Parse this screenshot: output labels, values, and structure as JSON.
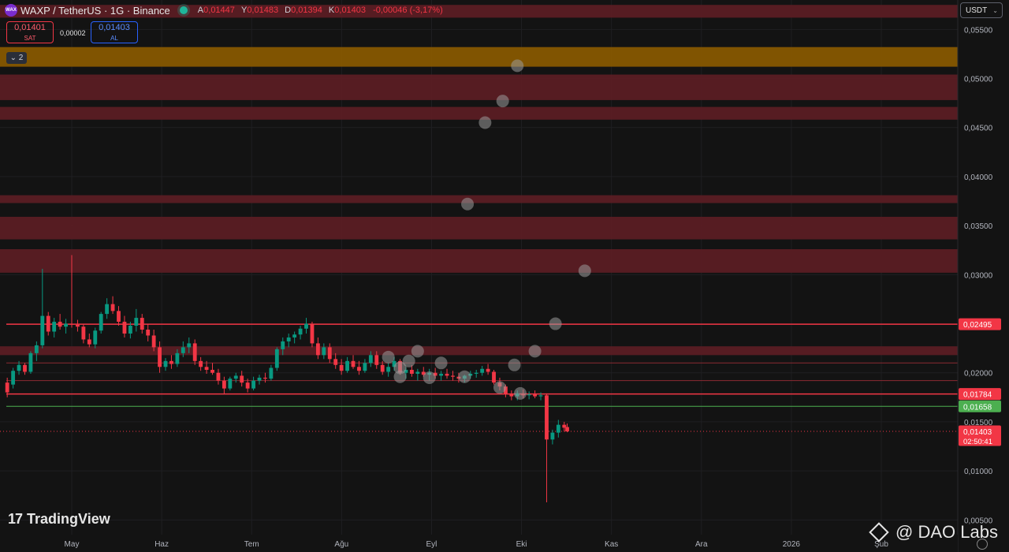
{
  "header": {
    "symbol": "WAXP / TetherUS · 1G · Binance",
    "ohlc": [
      {
        "key": "A",
        "value": "0,01447"
      },
      {
        "key": "Y",
        "value": "0,01483"
      },
      {
        "key": "D",
        "value": "0,01394"
      },
      {
        "key": "K",
        "value": "0,01403"
      }
    ],
    "change": "-0,00046 (-3,17%)"
  },
  "trade_panel": {
    "sell_price": "0,01401",
    "sell_label": "SAT",
    "spread": "0,00002",
    "buy_price": "0,01403",
    "buy_label": "AL"
  },
  "indicator_toggle": "2",
  "currency_button": "USDT",
  "tv_brand": "TradingView",
  "watermark": "@ DAO Labs",
  "chart_data": {
    "type": "candlestick",
    "pair": "WAXP/USDT",
    "timeframe": "1G",
    "exchange": "Binance",
    "y_ticks": [
      "0,05500",
      "0,05000",
      "0,04500",
      "0,04000",
      "0,03500",
      "0,03000",
      "0,02000",
      "0,01500",
      "0,01000",
      "0,00500"
    ],
    "ylim": [
      0.0035,
      0.058
    ],
    "x_ticks": [
      "May",
      "Haz",
      "Tem",
      "Ağu",
      "Eyl",
      "Eki",
      "Kas",
      "Ara",
      "2026",
      "Şub"
    ],
    "current_price": "0,01403",
    "countdown": "02:50:41",
    "price_labels": [
      {
        "value": "0,02495",
        "color": "#f23645"
      },
      {
        "value": "0,01784",
        "color": "#f23645"
      },
      {
        "value": "0,01658",
        "color": "#4caf50"
      }
    ],
    "zones": [
      {
        "from": 0.0575,
        "to": 0.0562,
        "color": "#5c1d24"
      },
      {
        "from": 0.0512,
        "to": 0.0532,
        "color": "#8a5a00"
      },
      {
        "from": 0.0478,
        "to": 0.0504,
        "color": "#5c1d24"
      },
      {
        "from": 0.0458,
        "to": 0.0471,
        "color": "#5c1d24"
      },
      {
        "from": 0.0373,
        "to": 0.0381,
        "color": "#5c1d24"
      },
      {
        "from": 0.0336,
        "to": 0.0359,
        "color": "#5c1d24"
      },
      {
        "from": 0.0302,
        "to": 0.0326,
        "color": "#5c1d24"
      },
      {
        "from": 0.0218,
        "to": 0.0227,
        "color": "#5c1d24"
      }
    ],
    "lines": [
      {
        "value": 0.02495,
        "color": "#f23645",
        "width": 1.5
      },
      {
        "value": 0.021,
        "color": "#8b2a33",
        "width": 1
      },
      {
        "value": 0.0192,
        "color": "#8b2a33",
        "width": 1
      },
      {
        "value": 0.01784,
        "color": "#f23645",
        "width": 1.5
      },
      {
        "value": 0.01658,
        "color": "#4caf50",
        "width": 1
      }
    ],
    "bubbles": [
      {
        "date": "2025-08-17",
        "price": 0.0216
      },
      {
        "date": "2025-08-21",
        "price": 0.0205
      },
      {
        "date": "2025-08-21",
        "price": 0.0196
      },
      {
        "date": "2025-08-24",
        "price": 0.0212
      },
      {
        "date": "2025-08-27",
        "price": 0.0222
      },
      {
        "date": "2025-08-31",
        "price": 0.0195
      },
      {
        "date": "2025-09-04",
        "price": 0.021
      },
      {
        "date": "2025-09-12",
        "price": 0.0196
      },
      {
        "date": "2025-09-13",
        "price": 0.0372
      },
      {
        "date": "2025-09-19",
        "price": 0.0455
      },
      {
        "date": "2025-09-24",
        "price": 0.0185
      },
      {
        "date": "2025-09-25",
        "price": 0.0477
      },
      {
        "date": "2025-09-29",
        "price": 0.0208
      },
      {
        "date": "2025-09-30",
        "price": 0.0513
      },
      {
        "date": "2025-10-01",
        "price": 0.0179
      },
      {
        "date": "2025-10-06",
        "price": 0.0222
      },
      {
        "date": "2025-10-13",
        "price": 0.025
      },
      {
        "date": "2025-10-23",
        "price": 0.0304
      }
    ],
    "candles": [
      {
        "date": "2025-04-09",
        "o": 0.019,
        "h": 0.0195,
        "l": 0.0175,
        "c": 0.018
      },
      {
        "date": "2025-04-11",
        "o": 0.0188,
        "h": 0.0205,
        "l": 0.0184,
        "c": 0.0202
      },
      {
        "date": "2025-04-13",
        "o": 0.0202,
        "h": 0.0212,
        "l": 0.0198,
        "c": 0.0208
      },
      {
        "date": "2025-04-15",
        "o": 0.0208,
        "h": 0.021,
        "l": 0.0198,
        "c": 0.0201
      },
      {
        "date": "2025-04-17",
        "o": 0.0201,
        "h": 0.0222,
        "l": 0.0199,
        "c": 0.022
      },
      {
        "date": "2025-04-19",
        "o": 0.022,
        "h": 0.0232,
        "l": 0.0212,
        "c": 0.0228
      },
      {
        "date": "2025-04-21",
        "o": 0.0228,
        "h": 0.0306,
        "l": 0.0225,
        "c": 0.0258
      },
      {
        "date": "2025-04-23",
        "o": 0.0258,
        "h": 0.0262,
        "l": 0.0238,
        "c": 0.0242
      },
      {
        "date": "2025-04-25",
        "o": 0.0242,
        "h": 0.0256,
        "l": 0.0236,
        "c": 0.0252
      },
      {
        "date": "2025-04-27",
        "o": 0.0252,
        "h": 0.026,
        "l": 0.0244,
        "c": 0.0247
      },
      {
        "date": "2025-04-29",
        "o": 0.0247,
        "h": 0.0255,
        "l": 0.024,
        "c": 0.025
      },
      {
        "date": "2025-05-01",
        "o": 0.025,
        "h": 0.032,
        "l": 0.0246,
        "c": 0.0249
      },
      {
        "date": "2025-05-03",
        "o": 0.0249,
        "h": 0.0254,
        "l": 0.0242,
        "c": 0.0247
      },
      {
        "date": "2025-05-05",
        "o": 0.0247,
        "h": 0.025,
        "l": 0.023,
        "c": 0.0234
      },
      {
        "date": "2025-05-07",
        "o": 0.0234,
        "h": 0.024,
        "l": 0.0226,
        "c": 0.0229
      },
      {
        "date": "2025-05-09",
        "o": 0.0229,
        "h": 0.0246,
        "l": 0.0225,
        "c": 0.0243
      },
      {
        "date": "2025-05-11",
        "o": 0.0243,
        "h": 0.0262,
        "l": 0.024,
        "c": 0.026
      },
      {
        "date": "2025-05-13",
        "o": 0.026,
        "h": 0.0276,
        "l": 0.0255,
        "c": 0.027
      },
      {
        "date": "2025-05-15",
        "o": 0.027,
        "h": 0.0278,
        "l": 0.026,
        "c": 0.0263
      },
      {
        "date": "2025-05-17",
        "o": 0.0263,
        "h": 0.0268,
        "l": 0.0248,
        "c": 0.0252
      },
      {
        "date": "2025-05-19",
        "o": 0.0252,
        "h": 0.0258,
        "l": 0.0236,
        "c": 0.024
      },
      {
        "date": "2025-05-21",
        "o": 0.024,
        "h": 0.0252,
        "l": 0.0235,
        "c": 0.0248
      },
      {
        "date": "2025-05-23",
        "o": 0.0248,
        "h": 0.0265,
        "l": 0.0242,
        "c": 0.0256
      },
      {
        "date": "2025-05-25",
        "o": 0.0256,
        "h": 0.026,
        "l": 0.024,
        "c": 0.0244
      },
      {
        "date": "2025-05-27",
        "o": 0.0244,
        "h": 0.025,
        "l": 0.0232,
        "c": 0.0238
      },
      {
        "date": "2025-05-29",
        "o": 0.0238,
        "h": 0.0244,
        "l": 0.0222,
        "c": 0.0226
      },
      {
        "date": "2025-05-31",
        "o": 0.0226,
        "h": 0.0232,
        "l": 0.02,
        "c": 0.0206
      },
      {
        "date": "2025-06-02",
        "o": 0.0206,
        "h": 0.0215,
        "l": 0.0202,
        "c": 0.0212
      },
      {
        "date": "2025-06-04",
        "o": 0.0212,
        "h": 0.0218,
        "l": 0.0204,
        "c": 0.0209
      },
      {
        "date": "2025-06-06",
        "o": 0.0209,
        "h": 0.0224,
        "l": 0.0206,
        "c": 0.022
      },
      {
        "date": "2025-06-08",
        "o": 0.022,
        "h": 0.0232,
        "l": 0.0216,
        "c": 0.0226
      },
      {
        "date": "2025-06-10",
        "o": 0.0226,
        "h": 0.0236,
        "l": 0.022,
        "c": 0.023
      },
      {
        "date": "2025-06-12",
        "o": 0.023,
        "h": 0.0234,
        "l": 0.0208,
        "c": 0.0212
      },
      {
        "date": "2025-06-14",
        "o": 0.0212,
        "h": 0.0216,
        "l": 0.0202,
        "c": 0.0206
      },
      {
        "date": "2025-06-16",
        "o": 0.0206,
        "h": 0.0212,
        "l": 0.0199,
        "c": 0.0203
      },
      {
        "date": "2025-06-18",
        "o": 0.0203,
        "h": 0.021,
        "l": 0.0198,
        "c": 0.02
      },
      {
        "date": "2025-06-20",
        "o": 0.02,
        "h": 0.0204,
        "l": 0.0188,
        "c": 0.0192
      },
      {
        "date": "2025-06-22",
        "o": 0.0192,
        "h": 0.0196,
        "l": 0.0178,
        "c": 0.0184
      },
      {
        "date": "2025-06-24",
        "o": 0.0184,
        "h": 0.0196,
        "l": 0.0182,
        "c": 0.0194
      },
      {
        "date": "2025-06-26",
        "o": 0.0194,
        "h": 0.02,
        "l": 0.019,
        "c": 0.0197
      },
      {
        "date": "2025-06-28",
        "o": 0.0197,
        "h": 0.0202,
        "l": 0.0186,
        "c": 0.019
      },
      {
        "date": "2025-06-30",
        "o": 0.019,
        "h": 0.0194,
        "l": 0.018,
        "c": 0.0184
      },
      {
        "date": "2025-07-02",
        "o": 0.0184,
        "h": 0.0196,
        "l": 0.0182,
        "c": 0.0192
      },
      {
        "date": "2025-07-04",
        "o": 0.0192,
        "h": 0.0198,
        "l": 0.0188,
        "c": 0.0195
      },
      {
        "date": "2025-07-06",
        "o": 0.0195,
        "h": 0.02,
        "l": 0.019,
        "c": 0.0194
      },
      {
        "date": "2025-07-08",
        "o": 0.0194,
        "h": 0.0208,
        "l": 0.0192,
        "c": 0.0205
      },
      {
        "date": "2025-07-10",
        "o": 0.0205,
        "h": 0.0226,
        "l": 0.0202,
        "c": 0.0224
      },
      {
        "date": "2025-07-12",
        "o": 0.0224,
        "h": 0.0236,
        "l": 0.0218,
        "c": 0.0232
      },
      {
        "date": "2025-07-14",
        "o": 0.0232,
        "h": 0.024,
        "l": 0.0226,
        "c": 0.0236
      },
      {
        "date": "2025-07-16",
        "o": 0.0236,
        "h": 0.0242,
        "l": 0.023,
        "c": 0.0239
      },
      {
        "date": "2025-07-18",
        "o": 0.0239,
        "h": 0.0248,
        "l": 0.0234,
        "c": 0.0245
      },
      {
        "date": "2025-07-20",
        "o": 0.0245,
        "h": 0.0256,
        "l": 0.024,
        "c": 0.025
      },
      {
        "date": "2025-07-22",
        "o": 0.025,
        "h": 0.0252,
        "l": 0.0226,
        "c": 0.023
      },
      {
        "date": "2025-07-24",
        "o": 0.023,
        "h": 0.0236,
        "l": 0.0214,
        "c": 0.0218
      },
      {
        "date": "2025-07-26",
        "o": 0.0218,
        "h": 0.023,
        "l": 0.0214,
        "c": 0.0226
      },
      {
        "date": "2025-07-28",
        "o": 0.0226,
        "h": 0.023,
        "l": 0.021,
        "c": 0.0214
      },
      {
        "date": "2025-07-30",
        "o": 0.0214,
        "h": 0.022,
        "l": 0.0204,
        "c": 0.0208
      },
      {
        "date": "2025-08-01",
        "o": 0.0208,
        "h": 0.0214,
        "l": 0.0198,
        "c": 0.0202
      },
      {
        "date": "2025-08-03",
        "o": 0.0202,
        "h": 0.0216,
        "l": 0.02,
        "c": 0.0212
      },
      {
        "date": "2025-08-05",
        "o": 0.0212,
        "h": 0.0218,
        "l": 0.0204,
        "c": 0.0206
      },
      {
        "date": "2025-08-07",
        "o": 0.0206,
        "h": 0.0212,
        "l": 0.0198,
        "c": 0.0202
      },
      {
        "date": "2025-08-09",
        "o": 0.0202,
        "h": 0.0214,
        "l": 0.02,
        "c": 0.021
      },
      {
        "date": "2025-08-11",
        "o": 0.021,
        "h": 0.0222,
        "l": 0.0206,
        "c": 0.0218
      },
      {
        "date": "2025-08-13",
        "o": 0.0218,
        "h": 0.0222,
        "l": 0.0204,
        "c": 0.0208
      },
      {
        "date": "2025-08-15",
        "o": 0.0208,
        "h": 0.0212,
        "l": 0.0198,
        "c": 0.0201
      },
      {
        "date": "2025-08-17",
        "o": 0.0201,
        "h": 0.021,
        "l": 0.0196,
        "c": 0.0206
      },
      {
        "date": "2025-08-19",
        "o": 0.0206,
        "h": 0.0216,
        "l": 0.0202,
        "c": 0.0212
      },
      {
        "date": "2025-08-21",
        "o": 0.0212,
        "h": 0.0214,
        "l": 0.0198,
        "c": 0.02
      },
      {
        "date": "2025-08-23",
        "o": 0.02,
        "h": 0.0206,
        "l": 0.0194,
        "c": 0.0203
      },
      {
        "date": "2025-08-25",
        "o": 0.0203,
        "h": 0.0208,
        "l": 0.0196,
        "c": 0.0199
      },
      {
        "date": "2025-08-27",
        "o": 0.0199,
        "h": 0.0204,
        "l": 0.0192,
        "c": 0.0201
      },
      {
        "date": "2025-08-29",
        "o": 0.0201,
        "h": 0.0206,
        "l": 0.0196,
        "c": 0.0198
      },
      {
        "date": "2025-08-31",
        "o": 0.0198,
        "h": 0.0204,
        "l": 0.0192,
        "c": 0.02
      },
      {
        "date": "2025-09-02",
        "o": 0.02,
        "h": 0.0205,
        "l": 0.0194,
        "c": 0.0197
      },
      {
        "date": "2025-09-04",
        "o": 0.0197,
        "h": 0.0202,
        "l": 0.0192,
        "c": 0.0199
      },
      {
        "date": "2025-09-06",
        "o": 0.0199,
        "h": 0.0204,
        "l": 0.0194,
        "c": 0.0197
      },
      {
        "date": "2025-09-08",
        "o": 0.0197,
        "h": 0.0202,
        "l": 0.0192,
        "c": 0.0196
      },
      {
        "date": "2025-09-10",
        "o": 0.0196,
        "h": 0.02,
        "l": 0.019,
        "c": 0.0194
      },
      {
        "date": "2025-09-12",
        "o": 0.0194,
        "h": 0.0198,
        "l": 0.019,
        "c": 0.0197
      },
      {
        "date": "2025-09-14",
        "o": 0.0197,
        "h": 0.0202,
        "l": 0.0194,
        "c": 0.0199
      },
      {
        "date": "2025-09-16",
        "o": 0.0199,
        "h": 0.0203,
        "l": 0.0195,
        "c": 0.02
      },
      {
        "date": "2025-09-18",
        "o": 0.02,
        "h": 0.0207,
        "l": 0.0197,
        "c": 0.0204
      },
      {
        "date": "2025-09-20",
        "o": 0.0204,
        "h": 0.0209,
        "l": 0.0198,
        "c": 0.0201
      },
      {
        "date": "2025-09-22",
        "o": 0.0201,
        "h": 0.0203,
        "l": 0.0188,
        "c": 0.019
      },
      {
        "date": "2025-09-24",
        "o": 0.019,
        "h": 0.0195,
        "l": 0.0182,
        "c": 0.0186
      },
      {
        "date": "2025-09-26",
        "o": 0.0186,
        "h": 0.0188,
        "l": 0.0175,
        "c": 0.0178
      },
      {
        "date": "2025-09-28",
        "o": 0.0178,
        "h": 0.0182,
        "l": 0.0172,
        "c": 0.0176
      },
      {
        "date": "2025-09-30",
        "o": 0.0176,
        "h": 0.0182,
        "l": 0.0172,
        "c": 0.0179
      },
      {
        "date": "2025-10-02",
        "o": 0.0179,
        "h": 0.0183,
        "l": 0.0174,
        "c": 0.0177
      },
      {
        "date": "2025-10-04",
        "o": 0.0177,
        "h": 0.0181,
        "l": 0.0173,
        "c": 0.0178
      },
      {
        "date": "2025-10-06",
        "o": 0.0178,
        "h": 0.0182,
        "l": 0.0174,
        "c": 0.0176
      },
      {
        "date": "2025-10-08",
        "o": 0.0176,
        "h": 0.018,
        "l": 0.0172,
        "c": 0.0177
      },
      {
        "date": "2025-10-10",
        "o": 0.0177,
        "h": 0.0179,
        "l": 0.0068,
        "c": 0.0132
      },
      {
        "date": "2025-10-12",
        "o": 0.0132,
        "h": 0.0142,
        "l": 0.0127,
        "c": 0.0139
      },
      {
        "date": "2025-10-14",
        "o": 0.0139,
        "h": 0.0152,
        "l": 0.0134,
        "c": 0.0147
      },
      {
        "date": "2025-10-16",
        "o": 0.0147,
        "h": 0.015,
        "l": 0.014,
        "c": 0.0144
      },
      {
        "date": "2025-10-17",
        "o": 0.01447,
        "h": 0.01483,
        "l": 0.01394,
        "c": 0.01403
      }
    ]
  }
}
